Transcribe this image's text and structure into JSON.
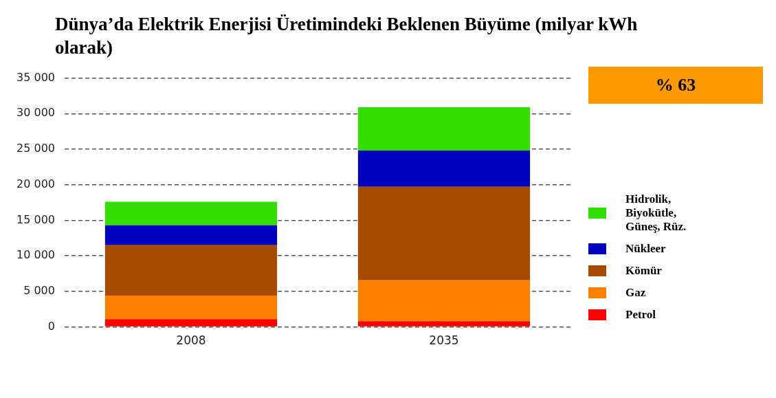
{
  "chart_data": {
    "type": "bar",
    "title": "Dünya’da Elektrik Enerjisi Üretimindeki Beklenen Büyüme (milyar kWh olarak)",
    "categories": [
      "2008",
      "2035"
    ],
    "stacked": true,
    "series": [
      {
        "name": "Petrol",
        "color": "#ff0000",
        "values": [
          1100,
          800
        ]
      },
      {
        "name": "Gaz",
        "color": "#ff7f00",
        "values": [
          3300,
          5750
        ]
      },
      {
        "name": "Kömür",
        "color": "#a64b00",
        "values": [
          7100,
          13150
        ]
      },
      {
        "name": "Nükleer",
        "color": "#0000bf",
        "values": [
          2800,
          5100
        ]
      },
      {
        "name": "Hidrolik, Biyokütle, Güneş, Rüz.",
        "color": "#33dd00",
        "values": [
          3300,
          6100
        ]
      }
    ],
    "ylim": [
      0,
      35000
    ],
    "yticks": [
      {
        "value": 0,
        "label": "0"
      },
      {
        "value": 5000,
        "label": "5 000"
      },
      {
        "value": 10000,
        "label": "10 000"
      },
      {
        "value": 15000,
        "label": "15 000"
      },
      {
        "value": 20000,
        "label": "20 000"
      },
      {
        "value": 25000,
        "label": "25 000"
      },
      {
        "value": 30000,
        "label": "30 000"
      },
      {
        "value": 35000,
        "label": "35 000"
      }
    ],
    "grid": "y",
    "legend": "right",
    "annotations": [
      "% 63"
    ]
  }
}
